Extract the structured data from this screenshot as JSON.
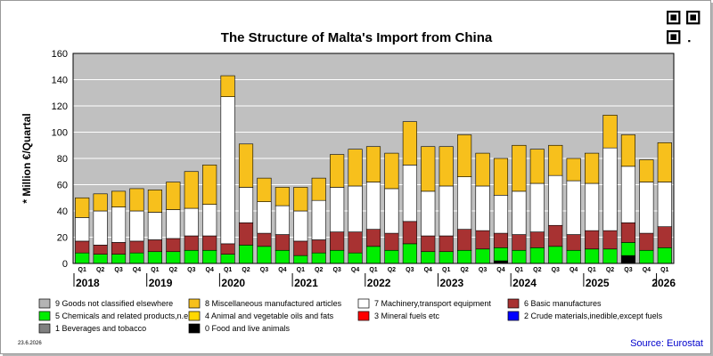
{
  "chart_data": {
    "type": "bar",
    "stacked": true,
    "title": "The Structure of Malta's Import from China",
    "ylabel": "* Million €/Quartal",
    "xlabel": "",
    "ylim": [
      0,
      160
    ],
    "yticks": [
      0,
      20,
      40,
      60,
      80,
      100,
      120,
      140,
      160
    ],
    "grid": true,
    "categories": [
      "Q1",
      "Q2",
      "Q3",
      "Q4",
      "Q1",
      "Q2",
      "Q3",
      "Q4",
      "Q1",
      "Q2",
      "Q3",
      "Q4",
      "Q1",
      "Q2",
      "Q3",
      "Q4",
      "Q1",
      "Q2",
      "Q3",
      "Q4",
      "Q1",
      "Q2",
      "Q3",
      "Q4",
      "Q1",
      "Q2",
      "Q3",
      "Q4",
      "Q1",
      "Q2",
      "Q3",
      "Q4",
      "Q1"
    ],
    "year_labels": [
      {
        "label": "2018",
        "index": 0
      },
      {
        "label": "2019",
        "index": 4
      },
      {
        "label": "2020",
        "index": 8
      },
      {
        "label": "2021",
        "index": 12
      },
      {
        "label": "2022",
        "index": 16
      },
      {
        "label": "2023",
        "index": 20
      },
      {
        "label": "2024",
        "index": 24
      },
      {
        "label": "2025",
        "index": 28
      },
      {
        "label": "2026",
        "index": 32
      }
    ],
    "series": [
      {
        "name": "0 Food and live animals",
        "color": "#000000",
        "values": [
          0,
          0,
          0,
          0,
          0,
          0,
          0,
          0,
          0,
          0,
          0,
          0,
          0,
          0,
          0,
          0,
          0,
          0,
          0,
          0,
          0,
          0,
          0,
          2,
          0,
          0,
          0,
          0,
          0,
          0,
          6,
          0,
          0
        ]
      },
      {
        "name": "1 Beverages and tobacco",
        "color": "#808080",
        "values": [
          0,
          0,
          0,
          0,
          0,
          0,
          0,
          0,
          0,
          0,
          0,
          0,
          0,
          0,
          0,
          0,
          0,
          0,
          0,
          0,
          0,
          0,
          0,
          0,
          0,
          0,
          0,
          0,
          0,
          0,
          0,
          0,
          0
        ]
      },
      {
        "name": "2 Crude materials,inedible,except fuels",
        "color": "#0000ff",
        "values": [
          0,
          0,
          0,
          0,
          0,
          0,
          0,
          0,
          0,
          0,
          0,
          0,
          0,
          0,
          0,
          0,
          0,
          0,
          0,
          0,
          0,
          0,
          0,
          0,
          0,
          0,
          0,
          0,
          0,
          0,
          0,
          0,
          0
        ]
      },
      {
        "name": "3 Mineral fuels etc",
        "color": "#ff0000",
        "values": [
          0,
          0,
          0,
          0,
          0,
          0,
          0,
          0,
          0,
          0,
          0,
          0,
          0,
          0,
          0,
          0,
          0,
          0,
          0,
          0,
          0,
          0,
          0,
          0,
          0,
          0,
          0,
          0,
          0,
          0,
          0,
          0,
          0
        ]
      },
      {
        "name": "5 Chemicals and related products,n.e.s.",
        "color": "#00ee00",
        "values": [
          8,
          7,
          7,
          8,
          9,
          9,
          10,
          10,
          7,
          14,
          13,
          10,
          6,
          8,
          10,
          8,
          13,
          10,
          15,
          9,
          9,
          10,
          11,
          10,
          10,
          12,
          13,
          10,
          11,
          11,
          10,
          10,
          12
        ]
      },
      {
        "name": "6 Basic manufactures",
        "color": "#a83232",
        "values": [
          9,
          7,
          9,
          9,
          9,
          10,
          11,
          11,
          8,
          17,
          10,
          12,
          11,
          10,
          14,
          16,
          13,
          13,
          17,
          12,
          12,
          16,
          14,
          11,
          12,
          12,
          16,
          12,
          14,
          14,
          15,
          13,
          16
        ]
      },
      {
        "name": "7 Machinery,transport equipment",
        "color": "#ffffff",
        "values": [
          18,
          26,
          27,
          23,
          21,
          22,
          21,
          24,
          112,
          27,
          24,
          22,
          23,
          30,
          34,
          35,
          36,
          34,
          43,
          34,
          38,
          40,
          34,
          29,
          33,
          37,
          38,
          41,
          36,
          63,
          43,
          39,
          34
        ]
      },
      {
        "name": "4 Animal and vegetable oils and fats",
        "color": "#ffd700",
        "values": [
          0,
          0,
          0,
          0,
          0,
          0,
          0,
          0,
          0,
          0,
          0,
          0,
          0,
          0,
          0,
          0,
          0,
          0,
          0,
          0,
          0,
          0,
          0,
          0,
          0,
          0,
          0,
          0,
          0,
          0,
          0,
          0,
          0
        ]
      },
      {
        "name": "8 Miscellaneous manufactured articles",
        "color": "#f7c01c",
        "values": [
          15,
          13,
          12,
          17,
          17,
          21,
          28,
          30,
          16,
          33,
          18,
          14,
          18,
          17,
          25,
          28,
          27,
          27,
          33,
          34,
          30,
          32,
          25,
          28,
          35,
          26,
          23,
          17,
          23,
          25,
          24,
          17,
          30
        ]
      },
      {
        "name": "9 Goods not classified elsewhere",
        "color": "#b4b4b4",
        "values": [
          0,
          0,
          0,
          0,
          0,
          0,
          0,
          0,
          0,
          0,
          0,
          0,
          0,
          0,
          0,
          0,
          0,
          0,
          0,
          0,
          0,
          0,
          0,
          0,
          0,
          0,
          0,
          0,
          0,
          0,
          0,
          0,
          0
        ]
      }
    ],
    "legend_order": [
      "9 Goods not classified elsewhere",
      "8 Miscellaneous manufactured articles",
      "7 Machinery,transport equipment",
      "6 Basic manufactures",
      "5 Chemicals and related products,n.e.s.",
      "4 Animal and vegetable oils and fats",
      "3 Mineral fuels etc",
      "2 Crude materials,inedible,except fuels",
      "1 Beverages and tobacco",
      "0 Food and live animals"
    ],
    "legend_placement": "bottom"
  },
  "footer": {
    "date": "23.6.2026",
    "source": "Source: Eurostat"
  },
  "colors": {
    "plot_background": "#c0c0c0",
    "grid": "#ffffff",
    "qr_icon": "qr-code-icon"
  }
}
